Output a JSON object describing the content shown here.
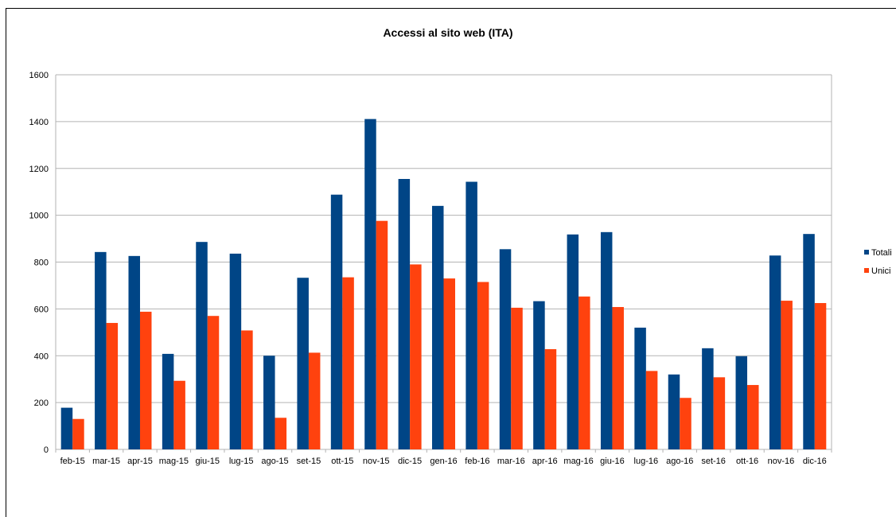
{
  "chart_data": {
    "type": "bar",
    "title": "Accessi al sito web (ITA)",
    "xlabel": "",
    "ylabel": "",
    "ylim": [
      0,
      1600
    ],
    "yticks": [
      0,
      200,
      400,
      600,
      800,
      1000,
      1200,
      1400,
      1600
    ],
    "grid": true,
    "legend": "right",
    "categories": [
      "feb-15",
      "mar-15",
      "apr-15",
      "mag-15",
      "giu-15",
      "lug-15",
      "ago-15",
      "set-15",
      "ott-15",
      "nov-15",
      "dic-15",
      "gen-16",
      "feb-16",
      "mar-16",
      "apr-16",
      "mag-16",
      "giu-16",
      "lug-16",
      "ago-16",
      "set-16",
      "ott-16",
      "nov-16",
      "dic-16"
    ],
    "series": [
      {
        "name": "Totali",
        "color": "#004586",
        "values": [
          178,
          843,
          826,
          408,
          886,
          836,
          400,
          733,
          1088,
          1411,
          1155,
          1040,
          1143,
          855,
          633,
          918,
          928,
          520,
          320,
          432,
          398,
          828,
          920
        ]
      },
      {
        "name": "Unici",
        "color": "#ff420e",
        "values": [
          130,
          540,
          588,
          293,
          570,
          508,
          135,
          413,
          735,
          976,
          790,
          730,
          715,
          605,
          428,
          653,
          608,
          335,
          220,
          308,
          275,
          635,
          625
        ]
      }
    ]
  }
}
